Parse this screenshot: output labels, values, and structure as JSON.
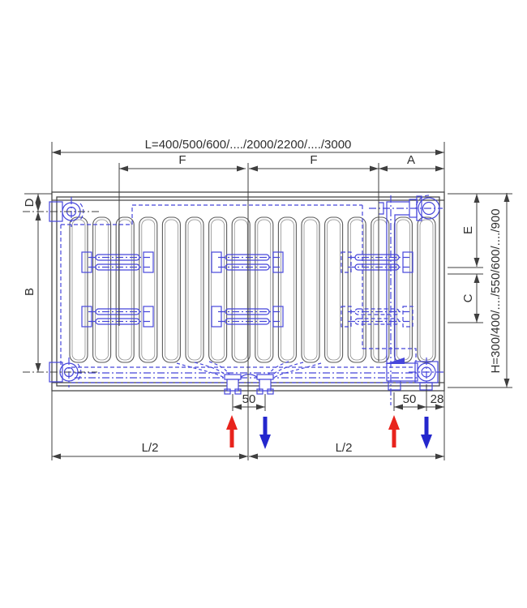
{
  "diagram": {
    "length_label": "L=400/500/600/..../2000/2200/..../3000",
    "height_label": "H=300/400/..../550/600/..../900",
    "dim_f_left": "F",
    "dim_f_right": "F",
    "dim_a": "A",
    "dim_d": "D",
    "dim_b": "B",
    "dim_e": "E",
    "dim_c": "C",
    "dim_50_center": "50",
    "dim_50_right": "50",
    "dim_28": "28",
    "half_length_left": "L/2",
    "half_length_right": "L/2"
  },
  "colors": {
    "line": "#3f3f3f",
    "fin_line": "#5a5a5a",
    "radiator_blue": "#4646db",
    "flow_red": "#e8231c",
    "return_blue": "#2427cd"
  }
}
